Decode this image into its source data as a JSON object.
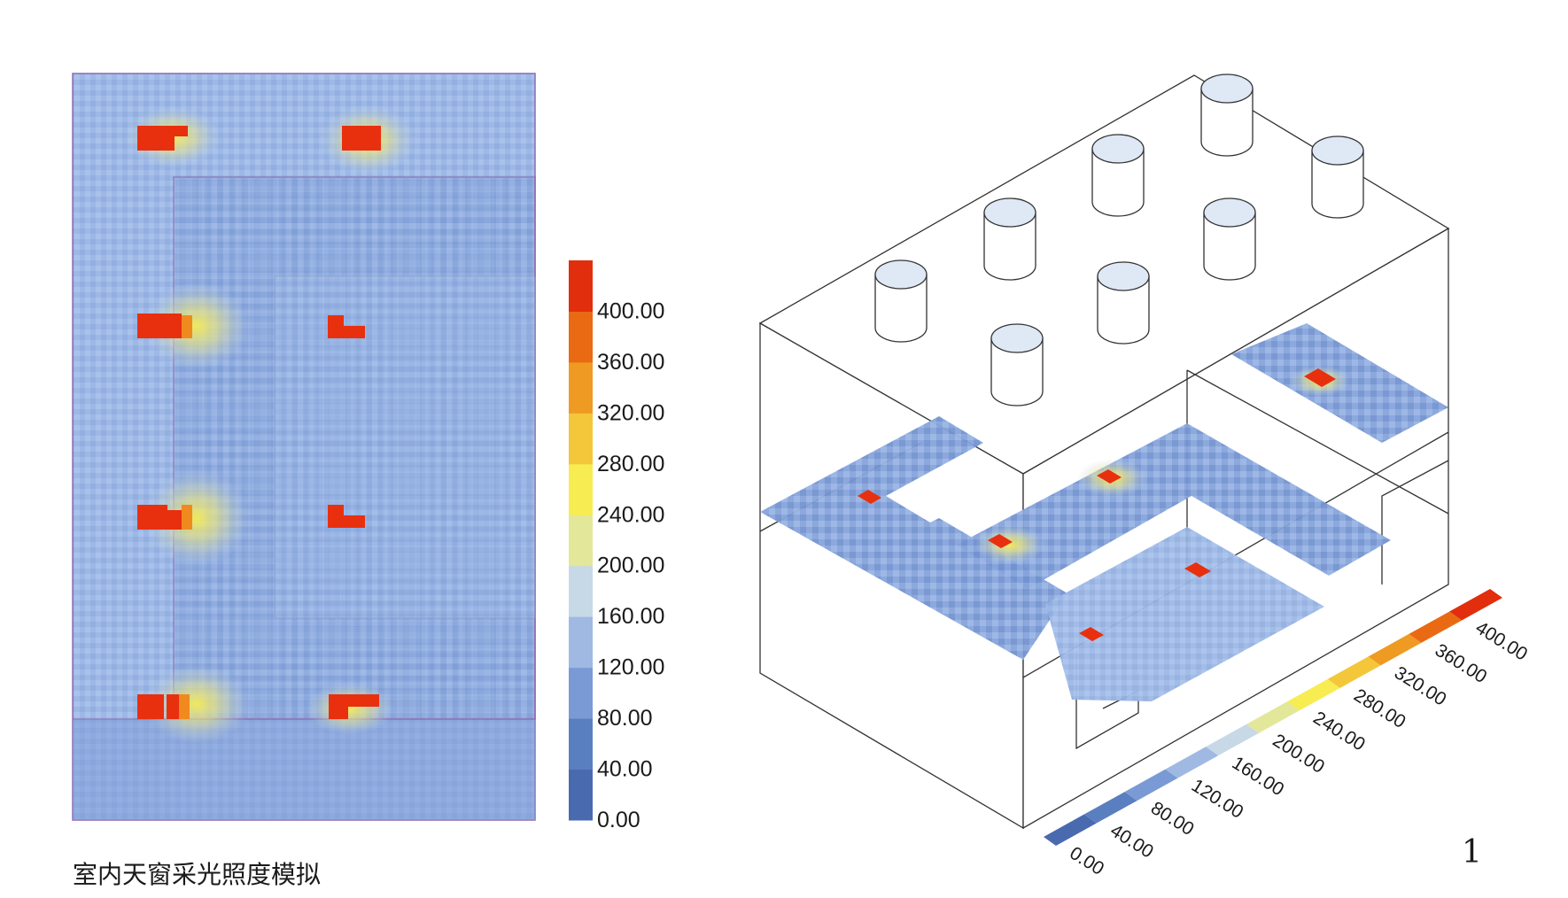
{
  "caption": "室内天窗采光照度模拟",
  "page_number": "1",
  "legend": {
    "values": [
      "0.00",
      "40.00",
      "80.00",
      "120.00",
      "160.00",
      "200.00",
      "240.00",
      "280.00",
      "320.00",
      "360.00",
      "400.00"
    ],
    "colors": [
      "#4a6ab0",
      "#5a7fc0",
      "#7a9ad5",
      "#9fb9e3",
      "#c7d9e6",
      "#e3e79a",
      "#f7ec52",
      "#f4c63a",
      "#ef9a22",
      "#ea6a14",
      "#e12e0c"
    ]
  },
  "plan_view": {
    "background_color": "#a9c0e9",
    "hotspot_color": "#e8300f",
    "glow_color": "#f5e860"
  },
  "isometric_view": {
    "skylight_count": 8,
    "line_color": "#333333"
  }
}
